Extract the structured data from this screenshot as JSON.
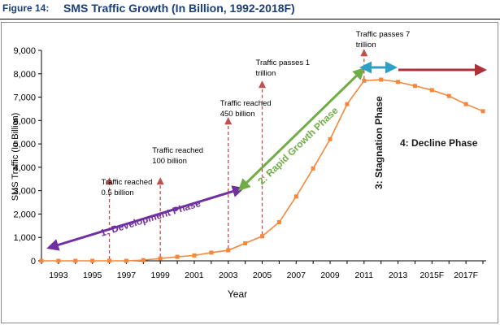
{
  "figure": {
    "label": "Figure 14:",
    "title": "SMS Traffic Growth (In Billion, 1992-2018F)"
  },
  "colors": {
    "title": "#1a3f7a",
    "series": "#f5873b",
    "milestone_arrow": "#c0504d",
    "development": "#7030a0",
    "rapid_growth": "#70ad47",
    "stagnation": "#2e9fc7",
    "decline": "#c0504d",
    "axis": "#000000"
  },
  "chart_data": {
    "type": "line",
    "xlabel": "Year",
    "ylabel": "SMS Traffic (In Billion)",
    "ylim": [
      0,
      9000
    ],
    "y_ticks": [
      "0",
      "1,000",
      "2,000",
      "3,000",
      "4,000",
      "5,000",
      "6,000",
      "7,000",
      "8,000",
      "9,000"
    ],
    "x_tick_labels": [
      "1993",
      "1995",
      "1997",
      "1999",
      "2001",
      "2003",
      "2005",
      "2007",
      "2009",
      "2011",
      "2013",
      "2015F",
      "2017F"
    ],
    "grid": false,
    "legend": "none",
    "series": [
      {
        "x": [
          1992,
          1993,
          1994,
          1995,
          1996,
          1997,
          1998,
          1999,
          2000,
          2001,
          2002,
          2003,
          2004,
          2005,
          2006,
          2007,
          2008,
          2009,
          2010,
          2011,
          2012,
          2013,
          2014,
          2015,
          2016,
          2017,
          2018
        ],
        "values": [
          0,
          0,
          0,
          0,
          0,
          0,
          30,
          100,
          170,
          230,
          350,
          450,
          750,
          1050,
          1650,
          2750,
          3950,
          5200,
          6700,
          7700,
          7750,
          7650,
          7480,
          7300,
          7050,
          6700,
          6400
        ]
      }
    ],
    "annotations": [
      {
        "text": "Traffic reached 0.5 billion",
        "lines": [
          "Traffic reached",
          "0.5 billion"
        ],
        "year": 1996
      },
      {
        "text": "Traffic reached 100 billion",
        "lines": [
          "Traffic reached",
          "100 billion"
        ],
        "year": 1999
      },
      {
        "text": "Traffic reached 450 billion",
        "lines": [
          "Traffic reached",
          "450 billion"
        ],
        "year": 2003
      },
      {
        "text": "Traffic passes 1 trillion",
        "lines": [
          "Traffic passes 1",
          "trillion"
        ],
        "year": 2005
      },
      {
        "text": "Traffic passes 7 trillion",
        "lines": [
          "Traffic passes 7",
          "trillion"
        ],
        "year": 2011
      }
    ],
    "phases": [
      {
        "label": "1: Development Phase"
      },
      {
        "label": "2: Rapid Growth Phase"
      },
      {
        "label": "3: Stagnation Phase"
      },
      {
        "label": "4: Decline Phase"
      }
    ]
  }
}
